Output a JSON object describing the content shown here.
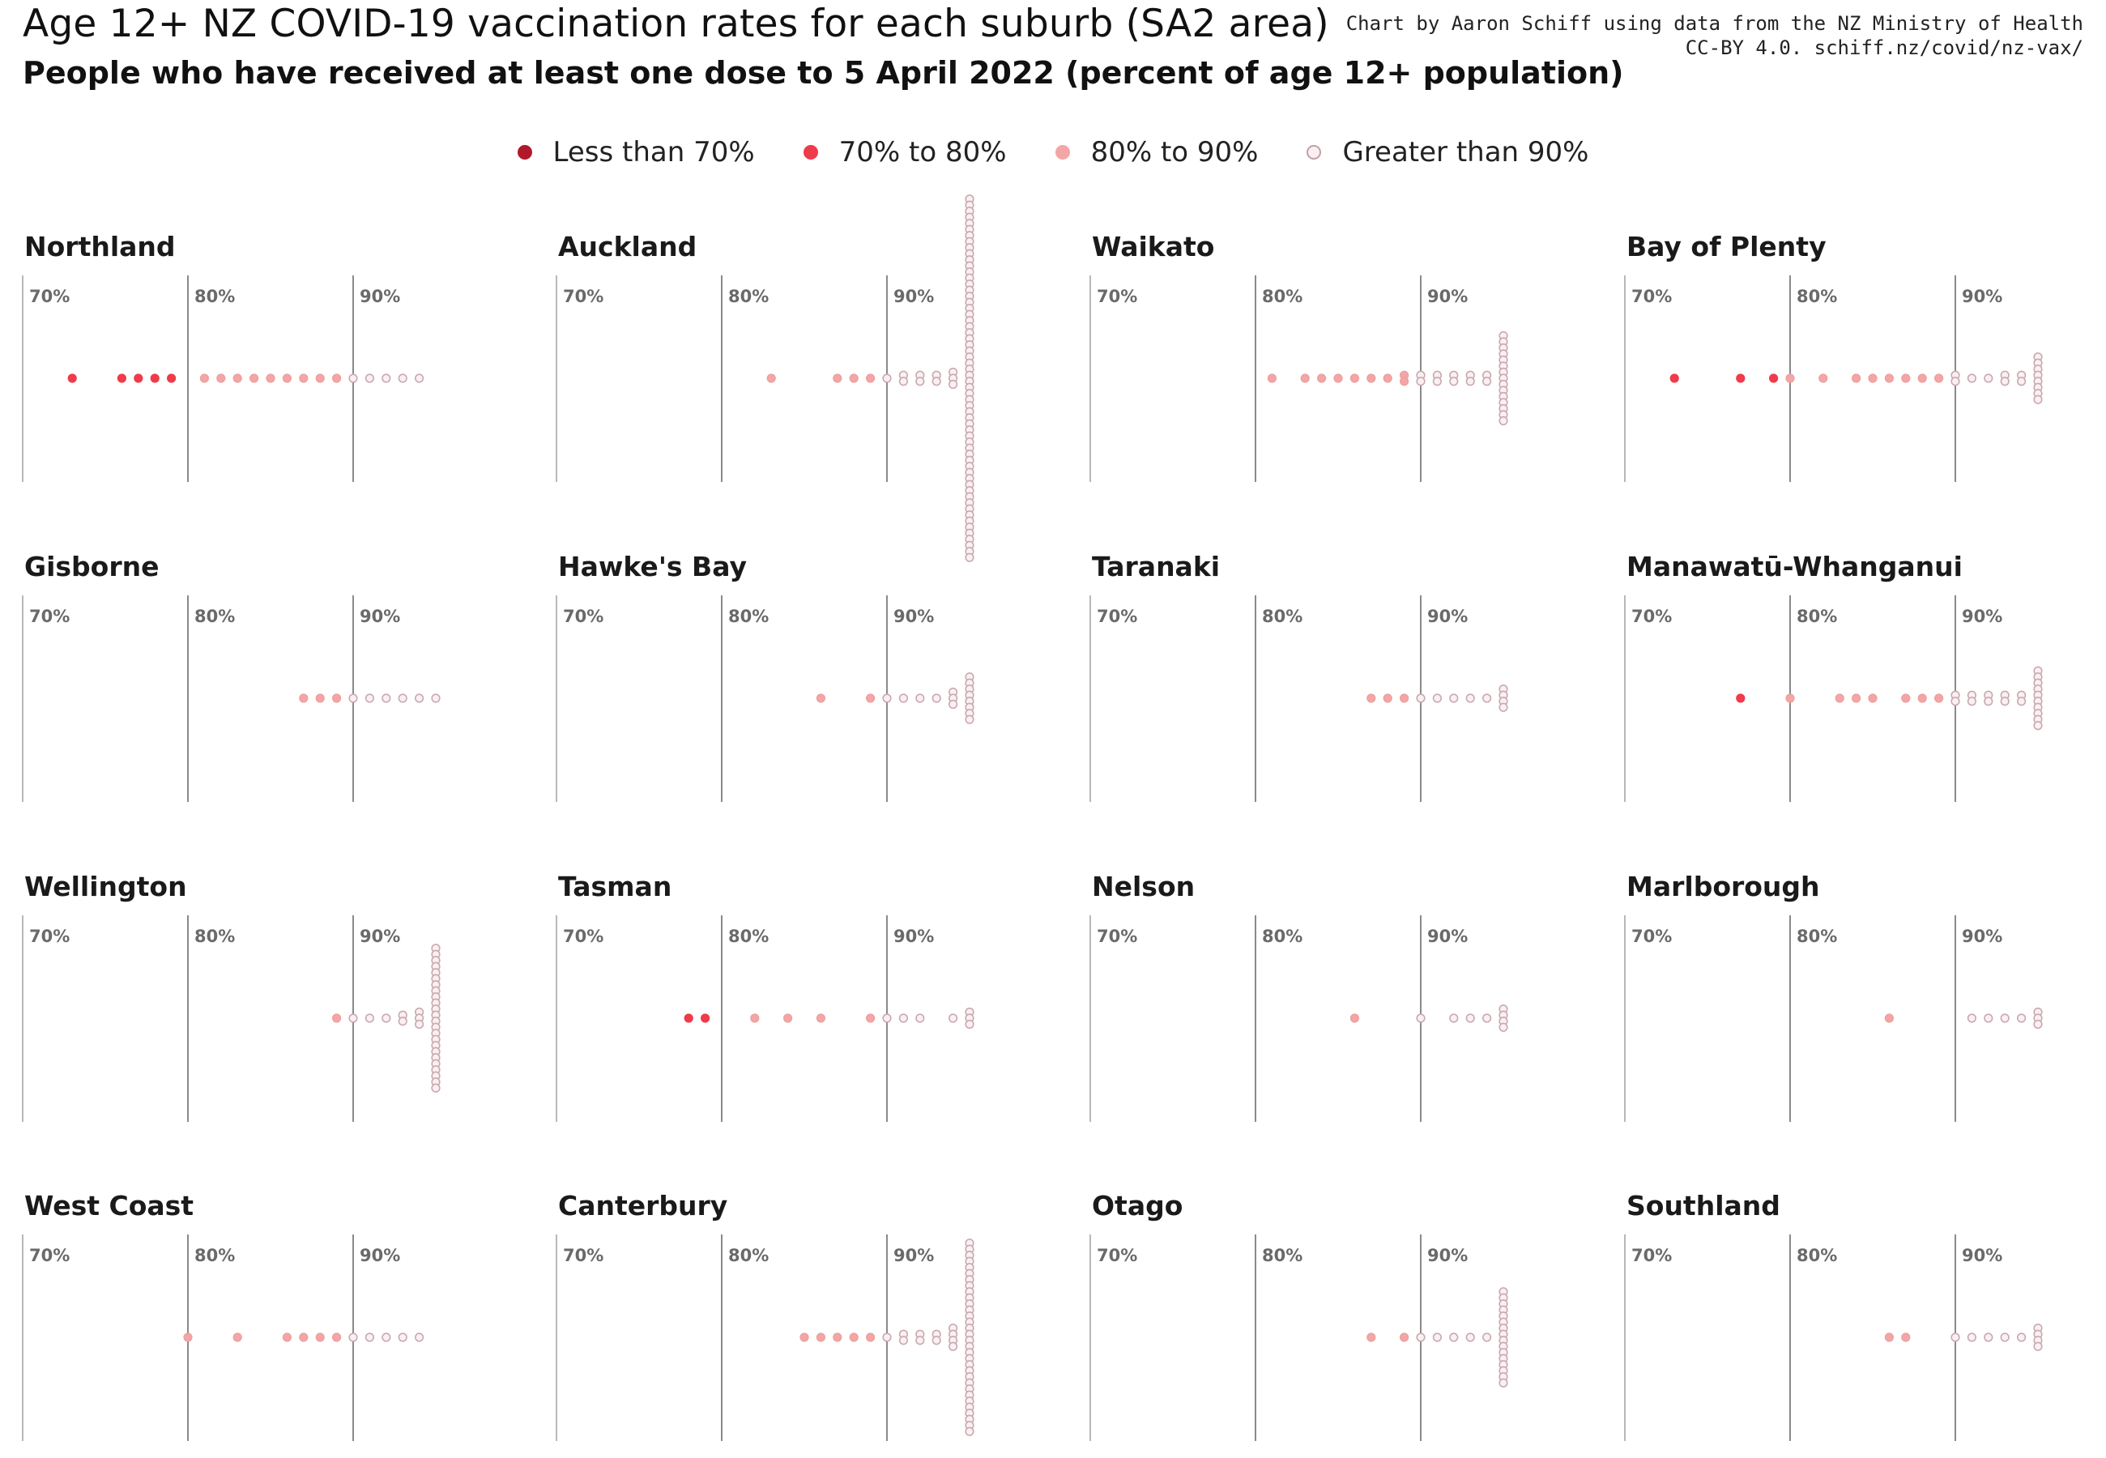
{
  "title": "Age 12+ NZ COVID-19 vaccination rates for each suburb (SA2 area)",
  "subtitle": "People who have received at least one dose to 5 April 2022 (percent of age 12+ population)",
  "credit": [
    "Chart by Aaron Schiff using data from the NZ Ministry of Health",
    "CC-BY 4.0. schiff.nz/covid/nz-vax/"
  ],
  "legend": [
    {
      "label": "Less than 70%",
      "color": "#b2182b"
    },
    {
      "label": "70% to 80%",
      "color": "#ef3b4a"
    },
    {
      "label": "80% to 90%",
      "color": "#f4a6a6"
    },
    {
      "label": "Greater than 90%",
      "color": "#fbeff1"
    }
  ],
  "chart_data": {
    "type": "scatter",
    "xlim": [
      70,
      95
    ],
    "tick_labels": [
      "70%",
      "80%",
      "90%"
    ],
    "panels": [
      {
        "name": "Northland",
        "bins": [
          [
            73,
            1
          ],
          [
            76,
            1
          ],
          [
            77,
            1
          ],
          [
            78,
            1
          ],
          [
            79,
            1
          ],
          [
            81,
            1
          ],
          [
            82,
            1
          ],
          [
            83,
            1
          ],
          [
            84,
            1
          ],
          [
            85,
            1
          ],
          [
            86,
            1
          ],
          [
            87,
            1
          ],
          [
            88,
            1
          ],
          [
            89,
            1
          ],
          [
            90,
            1
          ],
          [
            91,
            1
          ],
          [
            92,
            1
          ],
          [
            93,
            1
          ],
          [
            94,
            1
          ]
        ]
      },
      {
        "name": "Auckland",
        "bins": [
          [
            83,
            1
          ],
          [
            87,
            1
          ],
          [
            88,
            1
          ],
          [
            89,
            1
          ],
          [
            90,
            1
          ],
          [
            91,
            2
          ],
          [
            92,
            2
          ],
          [
            93,
            2
          ],
          [
            94,
            3
          ],
          [
            95,
            60
          ]
        ]
      },
      {
        "name": "Waikato",
        "bins": [
          [
            81,
            1
          ],
          [
            83,
            1
          ],
          [
            84,
            1
          ],
          [
            85,
            1
          ],
          [
            86,
            1
          ],
          [
            87,
            1
          ],
          [
            88,
            1
          ],
          [
            89,
            2
          ],
          [
            90,
            2
          ],
          [
            91,
            2
          ],
          [
            92,
            2
          ],
          [
            93,
            2
          ],
          [
            94,
            2
          ],
          [
            95,
            15
          ]
        ]
      },
      {
        "name": "Bay of Plenty",
        "bins": [
          [
            73,
            1
          ],
          [
            77,
            1
          ],
          [
            79,
            1
          ],
          [
            80,
            1
          ],
          [
            82,
            1
          ],
          [
            84,
            1
          ],
          [
            85,
            1
          ],
          [
            86,
            1
          ],
          [
            87,
            1
          ],
          [
            88,
            1
          ],
          [
            89,
            1
          ],
          [
            90,
            2
          ],
          [
            91,
            1
          ],
          [
            92,
            1
          ],
          [
            93,
            2
          ],
          [
            94,
            2
          ],
          [
            95,
            8
          ]
        ]
      },
      {
        "name": "Gisborne",
        "bins": [
          [
            87,
            1
          ],
          [
            88,
            1
          ],
          [
            89,
            1
          ],
          [
            90,
            1
          ],
          [
            91,
            1
          ],
          [
            92,
            1
          ],
          [
            93,
            1
          ],
          [
            94,
            1
          ],
          [
            95,
            1
          ]
        ]
      },
      {
        "name": "Hawke's Bay",
        "bins": [
          [
            86,
            1
          ],
          [
            89,
            1
          ],
          [
            90,
            1
          ],
          [
            91,
            1
          ],
          [
            92,
            1
          ],
          [
            93,
            1
          ],
          [
            94,
            3
          ],
          [
            95,
            8
          ]
        ]
      },
      {
        "name": "Taranaki",
        "bins": [
          [
            87,
            1
          ],
          [
            88,
            1
          ],
          [
            89,
            1
          ],
          [
            90,
            1
          ],
          [
            91,
            1
          ],
          [
            92,
            1
          ],
          [
            93,
            1
          ],
          [
            94,
            1
          ],
          [
            95,
            4
          ]
        ]
      },
      {
        "name": "Manawatū-Whanganui",
        "bins": [
          [
            77,
            1
          ],
          [
            80,
            1
          ],
          [
            83,
            1
          ],
          [
            84,
            1
          ],
          [
            85,
            1
          ],
          [
            87,
            1
          ],
          [
            88,
            1
          ],
          [
            89,
            1
          ],
          [
            90,
            2
          ],
          [
            91,
            2
          ],
          [
            92,
            2
          ],
          [
            93,
            2
          ],
          [
            94,
            2
          ],
          [
            95,
            10
          ]
        ]
      },
      {
        "name": "Wellington",
        "bins": [
          [
            89,
            1
          ],
          [
            90,
            1
          ],
          [
            91,
            1
          ],
          [
            92,
            1
          ],
          [
            93,
            2
          ],
          [
            94,
            3
          ],
          [
            95,
            24
          ]
        ]
      },
      {
        "name": "Tasman",
        "bins": [
          [
            78,
            1
          ],
          [
            79,
            1
          ],
          [
            82,
            1
          ],
          [
            84,
            1
          ],
          [
            86,
            1
          ],
          [
            89,
            1
          ],
          [
            90,
            1
          ],
          [
            91,
            1
          ],
          [
            92,
            1
          ],
          [
            94,
            1
          ],
          [
            95,
            3
          ]
        ]
      },
      {
        "name": "Nelson",
        "bins": [
          [
            86,
            1
          ],
          [
            90,
            1
          ],
          [
            92,
            1
          ],
          [
            93,
            1
          ],
          [
            94,
            1
          ],
          [
            95,
            4
          ]
        ]
      },
      {
        "name": "Marlborough",
        "bins": [
          [
            86,
            1
          ],
          [
            91,
            1
          ],
          [
            92,
            1
          ],
          [
            93,
            1
          ],
          [
            94,
            1
          ],
          [
            95,
            3
          ]
        ]
      },
      {
        "name": "West Coast",
        "bins": [
          [
            80,
            1
          ],
          [
            83,
            1
          ],
          [
            86,
            1
          ],
          [
            87,
            1
          ],
          [
            88,
            1
          ],
          [
            89,
            1
          ],
          [
            90,
            1
          ],
          [
            91,
            1
          ],
          [
            92,
            1
          ],
          [
            93,
            1
          ],
          [
            94,
            1
          ]
        ]
      },
      {
        "name": "Canterbury",
        "bins": [
          [
            85,
            1
          ],
          [
            86,
            1
          ],
          [
            87,
            1
          ],
          [
            88,
            1
          ],
          [
            89,
            1
          ],
          [
            90,
            1
          ],
          [
            91,
            2
          ],
          [
            92,
            2
          ],
          [
            93,
            2
          ],
          [
            94,
            4
          ],
          [
            95,
            32
          ]
        ]
      },
      {
        "name": "Otago",
        "bins": [
          [
            87,
            1
          ],
          [
            89,
            1
          ],
          [
            90,
            1
          ],
          [
            91,
            1
          ],
          [
            92,
            1
          ],
          [
            93,
            1
          ],
          [
            94,
            1
          ],
          [
            95,
            16
          ]
        ]
      },
      {
        "name": "Southland",
        "bins": [
          [
            86,
            1
          ],
          [
            87,
            1
          ],
          [
            90,
            1
          ],
          [
            91,
            1
          ],
          [
            92,
            1
          ],
          [
            93,
            1
          ],
          [
            94,
            1
          ],
          [
            95,
            4
          ]
        ]
      }
    ]
  }
}
